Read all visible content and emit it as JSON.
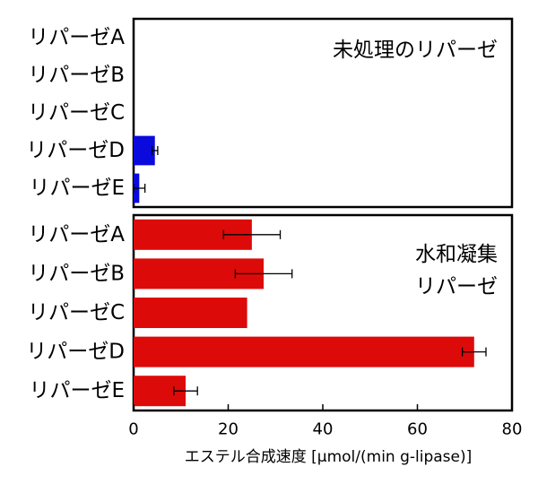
{
  "chart_data": [
    {
      "type": "bar",
      "orientation": "horizontal",
      "title_lines": [
        "未処理のリパーゼ"
      ],
      "categories": [
        "リパーゼA",
        "リパーゼB",
        "リパーゼC",
        "リパーゼD",
        "リパーゼE"
      ],
      "values": [
        0,
        0,
        0,
        4.5,
        1.2
      ],
      "errors": [
        null,
        null,
        null,
        0.6,
        1.2
      ],
      "color": "#0a0adc",
      "xlim": [
        0,
        80
      ]
    },
    {
      "type": "bar",
      "orientation": "horizontal",
      "title_lines": [
        "水和凝集",
        "リパーゼ"
      ],
      "categories": [
        "リパーゼA",
        "リパーゼB",
        "リパーゼC",
        "リパーゼD",
        "リパーゼE"
      ],
      "values": [
        25,
        27.5,
        24,
        72,
        11
      ],
      "errors": [
        6,
        6,
        null,
        2.5,
        2.5
      ],
      "color": "#dd0a0a",
      "xlim": [
        0,
        80
      ],
      "xticks": [
        0,
        20,
        40,
        60,
        80
      ],
      "xlabel": "エステル合成速度 [μmol/(min g-lipase)]"
    }
  ]
}
